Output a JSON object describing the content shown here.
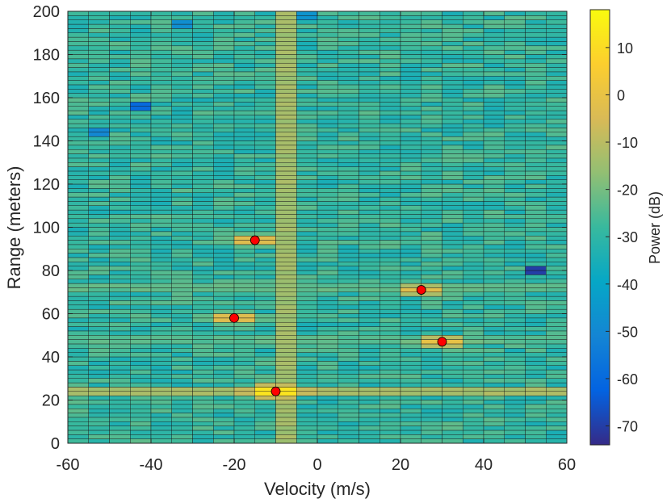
{
  "chart_data": {
    "type": "heatmap",
    "xlabel": "Velocity (m/s)",
    "ylabel": "Range (meters)",
    "xlim": [
      -60,
      60
    ],
    "ylim": [
      0,
      200
    ],
    "xticks": [
      -60,
      -40,
      -20,
      0,
      20,
      40,
      60
    ],
    "yticks": [
      0,
      20,
      40,
      60,
      80,
      100,
      120,
      140,
      160,
      180,
      200
    ],
    "velocity_bin_width": 5,
    "range_bin_height": 2,
    "colorbar": {
      "label": "Power (dB)",
      "limits": [
        -74,
        18
      ],
      "ticks": [
        -70,
        -60,
        -50,
        -40,
        -30,
        -20,
        -10,
        0,
        10
      ]
    },
    "background_level_db": -29,
    "ridges": [
      {
        "orientation": "range",
        "velocity": -7.5,
        "level_db": -14
      },
      {
        "orientation": "velocity",
        "range": 24,
        "level_db": -13
      },
      {
        "orientation": "velocity",
        "range": 48,
        "level_db": -24
      },
      {
        "orientation": "velocity",
        "range": 72,
        "level_db": -23
      }
    ],
    "peaks": [
      {
        "velocity": -10,
        "range": 24,
        "power_db": 17
      },
      {
        "velocity": -20,
        "range": 58,
        "power_db": 2
      },
      {
        "velocity": -15,
        "range": 94,
        "power_db": 2
      },
      {
        "velocity": 25,
        "range": 71,
        "power_db": 0
      },
      {
        "velocity": 30,
        "range": 47,
        "power_db": 2
      }
    ],
    "detection_marker_color": "#ff0000",
    "dark_cells": [
      {
        "velocity": 52.5,
        "range": 80,
        "power_db": -70
      },
      {
        "velocity": -42.5,
        "range": 156,
        "power_db": -60
      },
      {
        "velocity": -32.5,
        "range": 194,
        "power_db": -48
      },
      {
        "velocity": -2.5,
        "range": 198,
        "power_db": -46
      },
      {
        "velocity": -52.5,
        "range": 144,
        "power_db": -50
      }
    ]
  }
}
